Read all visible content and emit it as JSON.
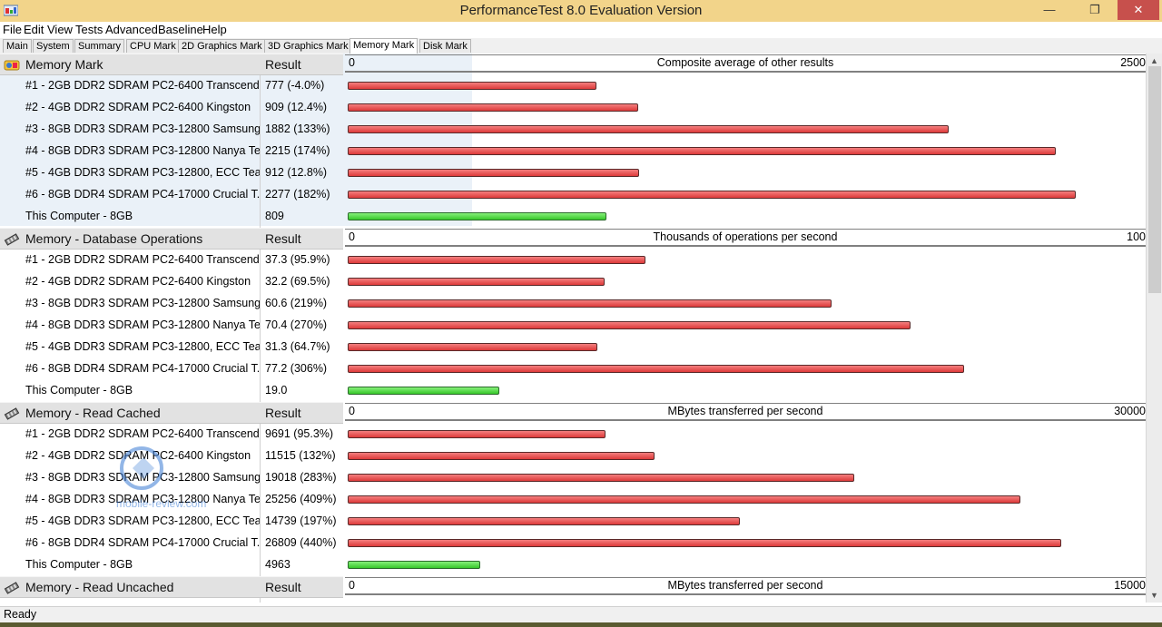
{
  "window": {
    "title": "PerformanceTest 8.0 Evaluation Version",
    "minimize": "—",
    "maximize": "❐",
    "close": "✕"
  },
  "menu": [
    "File",
    "Edit",
    "View",
    "Tests",
    "Advanced",
    "Baseline",
    "Help"
  ],
  "tabs": [
    "Main",
    "System",
    "Summary",
    "CPU Mark",
    "2D Graphics Mark",
    "3D Graphics Mark",
    "Memory Mark",
    "Disk Mark"
  ],
  "active_tab": "Memory Mark",
  "sections": [
    {
      "title": "Memory Mark",
      "result_header": "Result",
      "icon": "memory-mark-icon",
      "axis": {
        "zero": "0",
        "label": "Composite average of other results",
        "max_label": "2500",
        "max": 2500
      },
      "rows": [
        {
          "name": "#1 - 2GB DDR2 SDRAM PC2-6400 Transcend...",
          "score": "777 (-4.0%)",
          "value": 777,
          "kind": "red"
        },
        {
          "name": "#2 - 4GB DDR2 SDRAM PC2-6400 Kingston",
          "score": "909 (12.4%)",
          "value": 909,
          "kind": "red"
        },
        {
          "name": "#3 - 8GB DDR3 SDRAM PC3-12800 Samsung",
          "score": "1882 (133%)",
          "value": 1882,
          "kind": "red"
        },
        {
          "name": "#4 - 8GB DDR3 SDRAM PC3-12800 Nanya Te...",
          "score": "2215 (174%)",
          "value": 2215,
          "kind": "red"
        },
        {
          "name": "#5 - 4GB DDR3 SDRAM PC3-12800, ECC Tea...",
          "score": "912 (12.8%)",
          "value": 912,
          "kind": "red"
        },
        {
          "name": "#6 - 8GB DDR4 SDRAM PC4-17000 Crucial T...",
          "score": "2277 (182%)",
          "value": 2277,
          "kind": "red"
        },
        {
          "name": "This Computer - 8GB",
          "score": "809",
          "value": 809,
          "kind": "green"
        }
      ]
    },
    {
      "title": "Memory - Database Operations",
      "result_header": "Result",
      "icon": "memory-stick-icon",
      "axis": {
        "zero": "0",
        "label": "Thousands of operations per second",
        "max_label": "100",
        "max": 100
      },
      "rows": [
        {
          "name": "#1 - 2GB DDR2 SDRAM PC2-6400 Transcend...",
          "score": "37.3 (95.9%)",
          "value": 37.3,
          "kind": "red"
        },
        {
          "name": "#2 - 4GB DDR2 SDRAM PC2-6400 Kingston",
          "score": "32.2 (69.5%)",
          "value": 32.2,
          "kind": "red"
        },
        {
          "name": "#3 - 8GB DDR3 SDRAM PC3-12800 Samsung",
          "score": "60.6 (219%)",
          "value": 60.6,
          "kind": "red"
        },
        {
          "name": "#4 - 8GB DDR3 SDRAM PC3-12800 Nanya Te...",
          "score": "70.4 (270%)",
          "value": 70.4,
          "kind": "red"
        },
        {
          "name": "#5 - 4GB DDR3 SDRAM PC3-12800, ECC Tea...",
          "score": "31.3 (64.7%)",
          "value": 31.3,
          "kind": "red"
        },
        {
          "name": "#6 - 8GB DDR4 SDRAM PC4-17000 Crucial T...",
          "score": "77.2 (306%)",
          "value": 77.2,
          "kind": "red"
        },
        {
          "name": "This Computer - 8GB",
          "score": "19.0",
          "value": 19.0,
          "kind": "green"
        }
      ]
    },
    {
      "title": "Memory - Read Cached",
      "result_header": "Result",
      "icon": "memory-stick-icon",
      "axis": {
        "zero": "0",
        "label": "MBytes transferred per second",
        "max_label": "30000",
        "max": 30000
      },
      "rows": [
        {
          "name": "#1 - 2GB DDR2 SDRAM PC2-6400 Transcend...",
          "score": "9691 (95.3%)",
          "value": 9691,
          "kind": "red"
        },
        {
          "name": "#2 - 4GB DDR2 SDRAM PC2-6400 Kingston",
          "score": "11515 (132%)",
          "value": 11515,
          "kind": "red"
        },
        {
          "name": "#3 - 8GB DDR3 SDRAM PC3-12800 Samsung",
          "score": "19018 (283%)",
          "value": 19018,
          "kind": "red"
        },
        {
          "name": "#4 - 8GB DDR3 SDRAM PC3-12800 Nanya Te...",
          "score": "25256 (409%)",
          "value": 25256,
          "kind": "red"
        },
        {
          "name": "#5 - 4GB DDR3 SDRAM PC3-12800, ECC Tea...",
          "score": "14739 (197%)",
          "value": 14739,
          "kind": "red"
        },
        {
          "name": "#6 - 8GB DDR4 SDRAM PC4-17000 Crucial T...",
          "score": "26809 (440%)",
          "value": 26809,
          "kind": "red"
        },
        {
          "name": "This Computer - 8GB",
          "score": "4963",
          "value": 4963,
          "kind": "green"
        }
      ]
    },
    {
      "title": "Memory - Read Uncached",
      "result_header": "Result",
      "icon": "memory-stick-icon",
      "axis": {
        "zero": "0",
        "label": "MBytes transferred per second",
        "max_label": "15000",
        "max": 15000
      },
      "rows": []
    }
  ],
  "status": "Ready",
  "watermark": "mobile-review.com"
}
